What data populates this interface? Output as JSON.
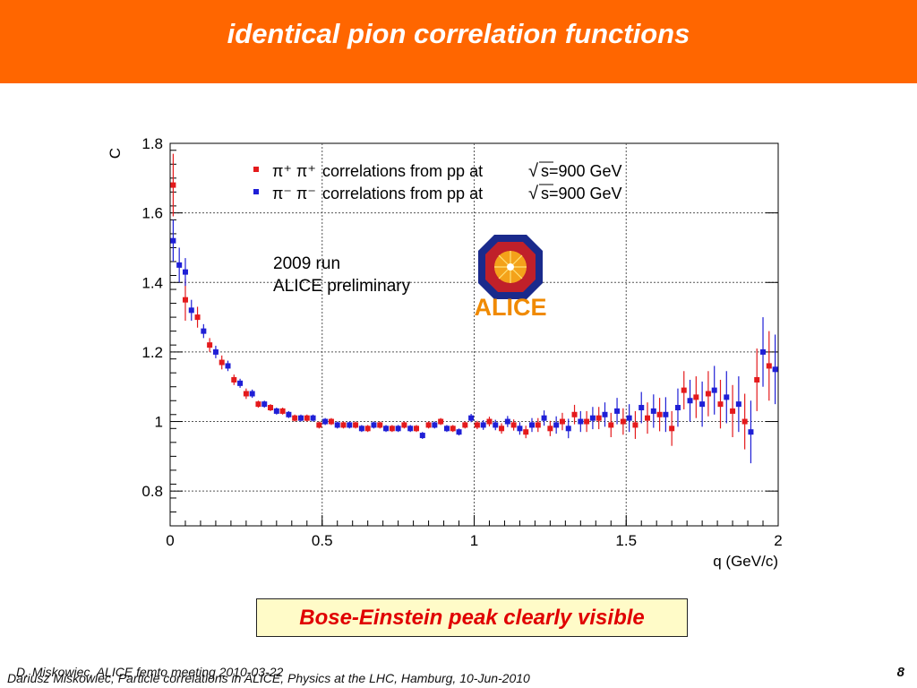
{
  "slide": {
    "title": "identical pion correlation functions",
    "callout": "Bose-Einstein peak clearly visible",
    "footer_line1": "D. Miskowiec, ALICE femto meeting 2010-03-22",
    "footer_line2": "Dariusz Miskowiec, Particle correlations in ALICE, Physics at the LHC, Hamburg, 10-Jun-2010",
    "page_number": "8"
  },
  "plot_annotation": {
    "run": "2009 run",
    "status": "ALICE preliminary",
    "logo_text": "ALICE"
  },
  "colors": {
    "title_bar": "#ff6600",
    "series_pos": "#e41a1c",
    "series_neg": "#1f1fd6",
    "logo_orange": "#f08a00",
    "logo_navy": "#1a2a8c"
  },
  "chart_data": {
    "type": "scatter",
    "xlabel": "q (GeV/c)",
    "ylabel": "C",
    "xlim": [
      0,
      2
    ],
    "ylim": [
      0.7,
      1.8
    ],
    "x_ticks": [
      "0",
      "0.5",
      "1",
      "1.5",
      "2"
    ],
    "y_ticks": [
      "0.8",
      "1",
      "1.2",
      "1.4",
      "1.6",
      "1.8"
    ],
    "grid": true,
    "legend_position": "top",
    "series": [
      {
        "name": "π⁺ π⁺ correlations from pp at √s=900 GeV",
        "legend_particles": "π⁺ π⁺",
        "legend_text": "correlations from pp at",
        "legend_sqrt": "s=900 GeV",
        "color": "#e41a1c",
        "x": [
          0.01,
          0.05,
          0.09,
          0.13,
          0.17,
          0.21,
          0.25,
          0.29,
          0.33,
          0.37,
          0.41,
          0.45,
          0.49,
          0.53,
          0.57,
          0.61,
          0.65,
          0.69,
          0.73,
          0.77,
          0.81,
          0.85,
          0.89,
          0.93,
          0.97,
          1.01,
          1.05,
          1.09,
          1.13,
          1.17,
          1.21,
          1.25,
          1.29,
          1.33,
          1.37,
          1.41,
          1.45,
          1.49,
          1.53,
          1.57,
          1.61,
          1.65,
          1.69,
          1.73,
          1.77,
          1.81,
          1.85,
          1.89,
          1.93,
          1.97
        ],
        "y": [
          1.68,
          1.35,
          1.3,
          1.22,
          1.17,
          1.12,
          1.08,
          1.05,
          1.04,
          1.03,
          1.01,
          1.01,
          0.99,
          1.0,
          0.99,
          0.99,
          0.98,
          0.99,
          0.98,
          0.99,
          0.98,
          0.99,
          1.0,
          0.98,
          0.99,
          0.99,
          1.0,
          0.98,
          0.99,
          0.97,
          0.99,
          0.98,
          1.0,
          1.02,
          1.0,
          1.01,
          0.99,
          1.0,
          0.99,
          1.01,
          1.02,
          0.98,
          1.09,
          1.07,
          1.08,
          1.05,
          1.03,
          1.0,
          1.12,
          1.16
        ],
        "err": [
          0.09,
          0.06,
          0.03,
          0.02,
          0.02,
          0.015,
          0.015,
          0.01,
          0.01,
          0.01,
          0.01,
          0.01,
          0.01,
          0.01,
          0.01,
          0.01,
          0.01,
          0.01,
          0.01,
          0.01,
          0.01,
          0.01,
          0.01,
          0.01,
          0.01,
          0.012,
          0.014,
          0.015,
          0.016,
          0.018,
          0.02,
          0.022,
          0.025,
          0.028,
          0.03,
          0.032,
          0.035,
          0.038,
          0.04,
          0.045,
          0.048,
          0.05,
          0.055,
          0.06,
          0.065,
          0.07,
          0.075,
          0.08,
          0.09,
          0.1
        ]
      },
      {
        "name": "π⁻ π⁻ correlations from pp at √s=900 GeV",
        "legend_particles": "π⁻ π⁻",
        "legend_text": "correlations from pp at",
        "legend_sqrt": "s=900 GeV",
        "color": "#1f1fd6",
        "x": [
          0.01,
          0.03,
          0.05,
          0.07,
          0.11,
          0.15,
          0.19,
          0.23,
          0.27,
          0.31,
          0.35,
          0.39,
          0.43,
          0.47,
          0.51,
          0.55,
          0.59,
          0.63,
          0.67,
          0.71,
          0.75,
          0.79,
          0.83,
          0.87,
          0.91,
          0.95,
          0.99,
          1.03,
          1.07,
          1.11,
          1.15,
          1.19,
          1.23,
          1.27,
          1.31,
          1.35,
          1.39,
          1.43,
          1.47,
          1.51,
          1.55,
          1.59,
          1.63,
          1.67,
          1.71,
          1.75,
          1.79,
          1.83,
          1.87,
          1.91,
          1.95,
          1.99
        ],
        "y": [
          1.52,
          1.45,
          1.43,
          1.32,
          1.26,
          1.2,
          1.16,
          1.11,
          1.08,
          1.05,
          1.03,
          1.02,
          1.01,
          1.01,
          1.0,
          0.99,
          0.99,
          0.98,
          0.99,
          0.98,
          0.98,
          0.98,
          0.96,
          0.99,
          0.98,
          0.97,
          1.01,
          0.99,
          0.99,
          1.0,
          0.98,
          0.99,
          1.01,
          0.99,
          0.98,
          1.0,
          1.01,
          1.02,
          1.03,
          1.01,
          1.04,
          1.03,
          1.02,
          1.04,
          1.06,
          1.05,
          1.09,
          1.07,
          1.05,
          0.97,
          1.2,
          1.15
        ],
        "err": [
          0.06,
          0.05,
          0.04,
          0.03,
          0.02,
          0.018,
          0.015,
          0.013,
          0.012,
          0.01,
          0.01,
          0.01,
          0.01,
          0.01,
          0.01,
          0.01,
          0.01,
          0.01,
          0.01,
          0.01,
          0.01,
          0.01,
          0.01,
          0.01,
          0.01,
          0.01,
          0.012,
          0.014,
          0.015,
          0.016,
          0.018,
          0.02,
          0.022,
          0.025,
          0.028,
          0.03,
          0.032,
          0.035,
          0.038,
          0.04,
          0.045,
          0.048,
          0.05,
          0.055,
          0.06,
          0.065,
          0.07,
          0.075,
          0.08,
          0.09,
          0.1,
          0.1
        ]
      }
    ]
  }
}
